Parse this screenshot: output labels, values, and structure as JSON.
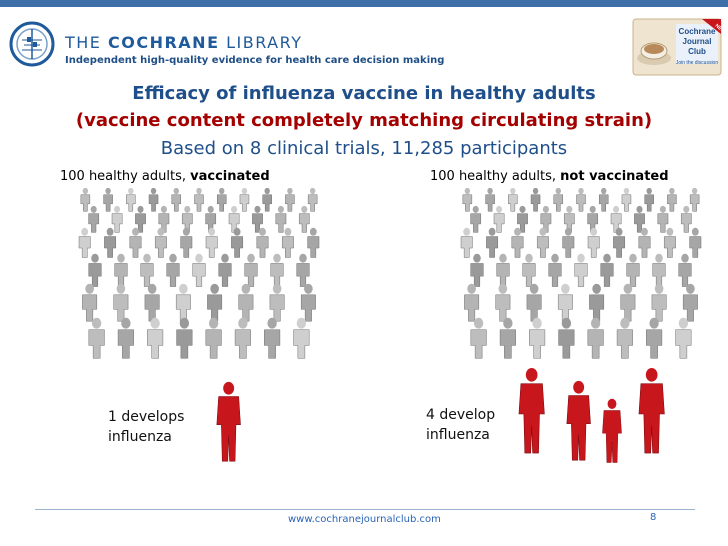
{
  "header": {
    "brand_prefix": "THE ",
    "brand_bold": "COCHRANE",
    "brand_suffix": " LIBRARY",
    "tagline": "Independent high-quality evidence for health care decision making",
    "journal_badge": {
      "line1": "Cochrane",
      "line2": "Journal",
      "line3": "Club",
      "cta": "Join the discussion",
      "ribbon": "NEW"
    }
  },
  "title": {
    "line1": "Efficacy of influenza vaccine in healthy adults",
    "line2": "(vaccine content completely matching circulating strain)",
    "line3": "Based on 8 clinical trials, 11,285 participants"
  },
  "groups": [
    {
      "prefix": "100 healthy adults, ",
      "bold": "vaccinated",
      "outcome_line1": "1 develops",
      "outcome_line2": "influenza",
      "ill_count": 1
    },
    {
      "prefix": "100 healthy adults, ",
      "bold": "not vaccinated",
      "outcome_line1": "4 develop",
      "outcome_line2": "influenza",
      "ill_count": 4
    }
  ],
  "colors": {
    "accent": "#1f4f8a",
    "highlight": "#a40000",
    "ill": "#c8161d",
    "healthy": "#a9a9a9"
  },
  "footer": {
    "url": "www.cochranejournalclub.com",
    "page": "8"
  }
}
